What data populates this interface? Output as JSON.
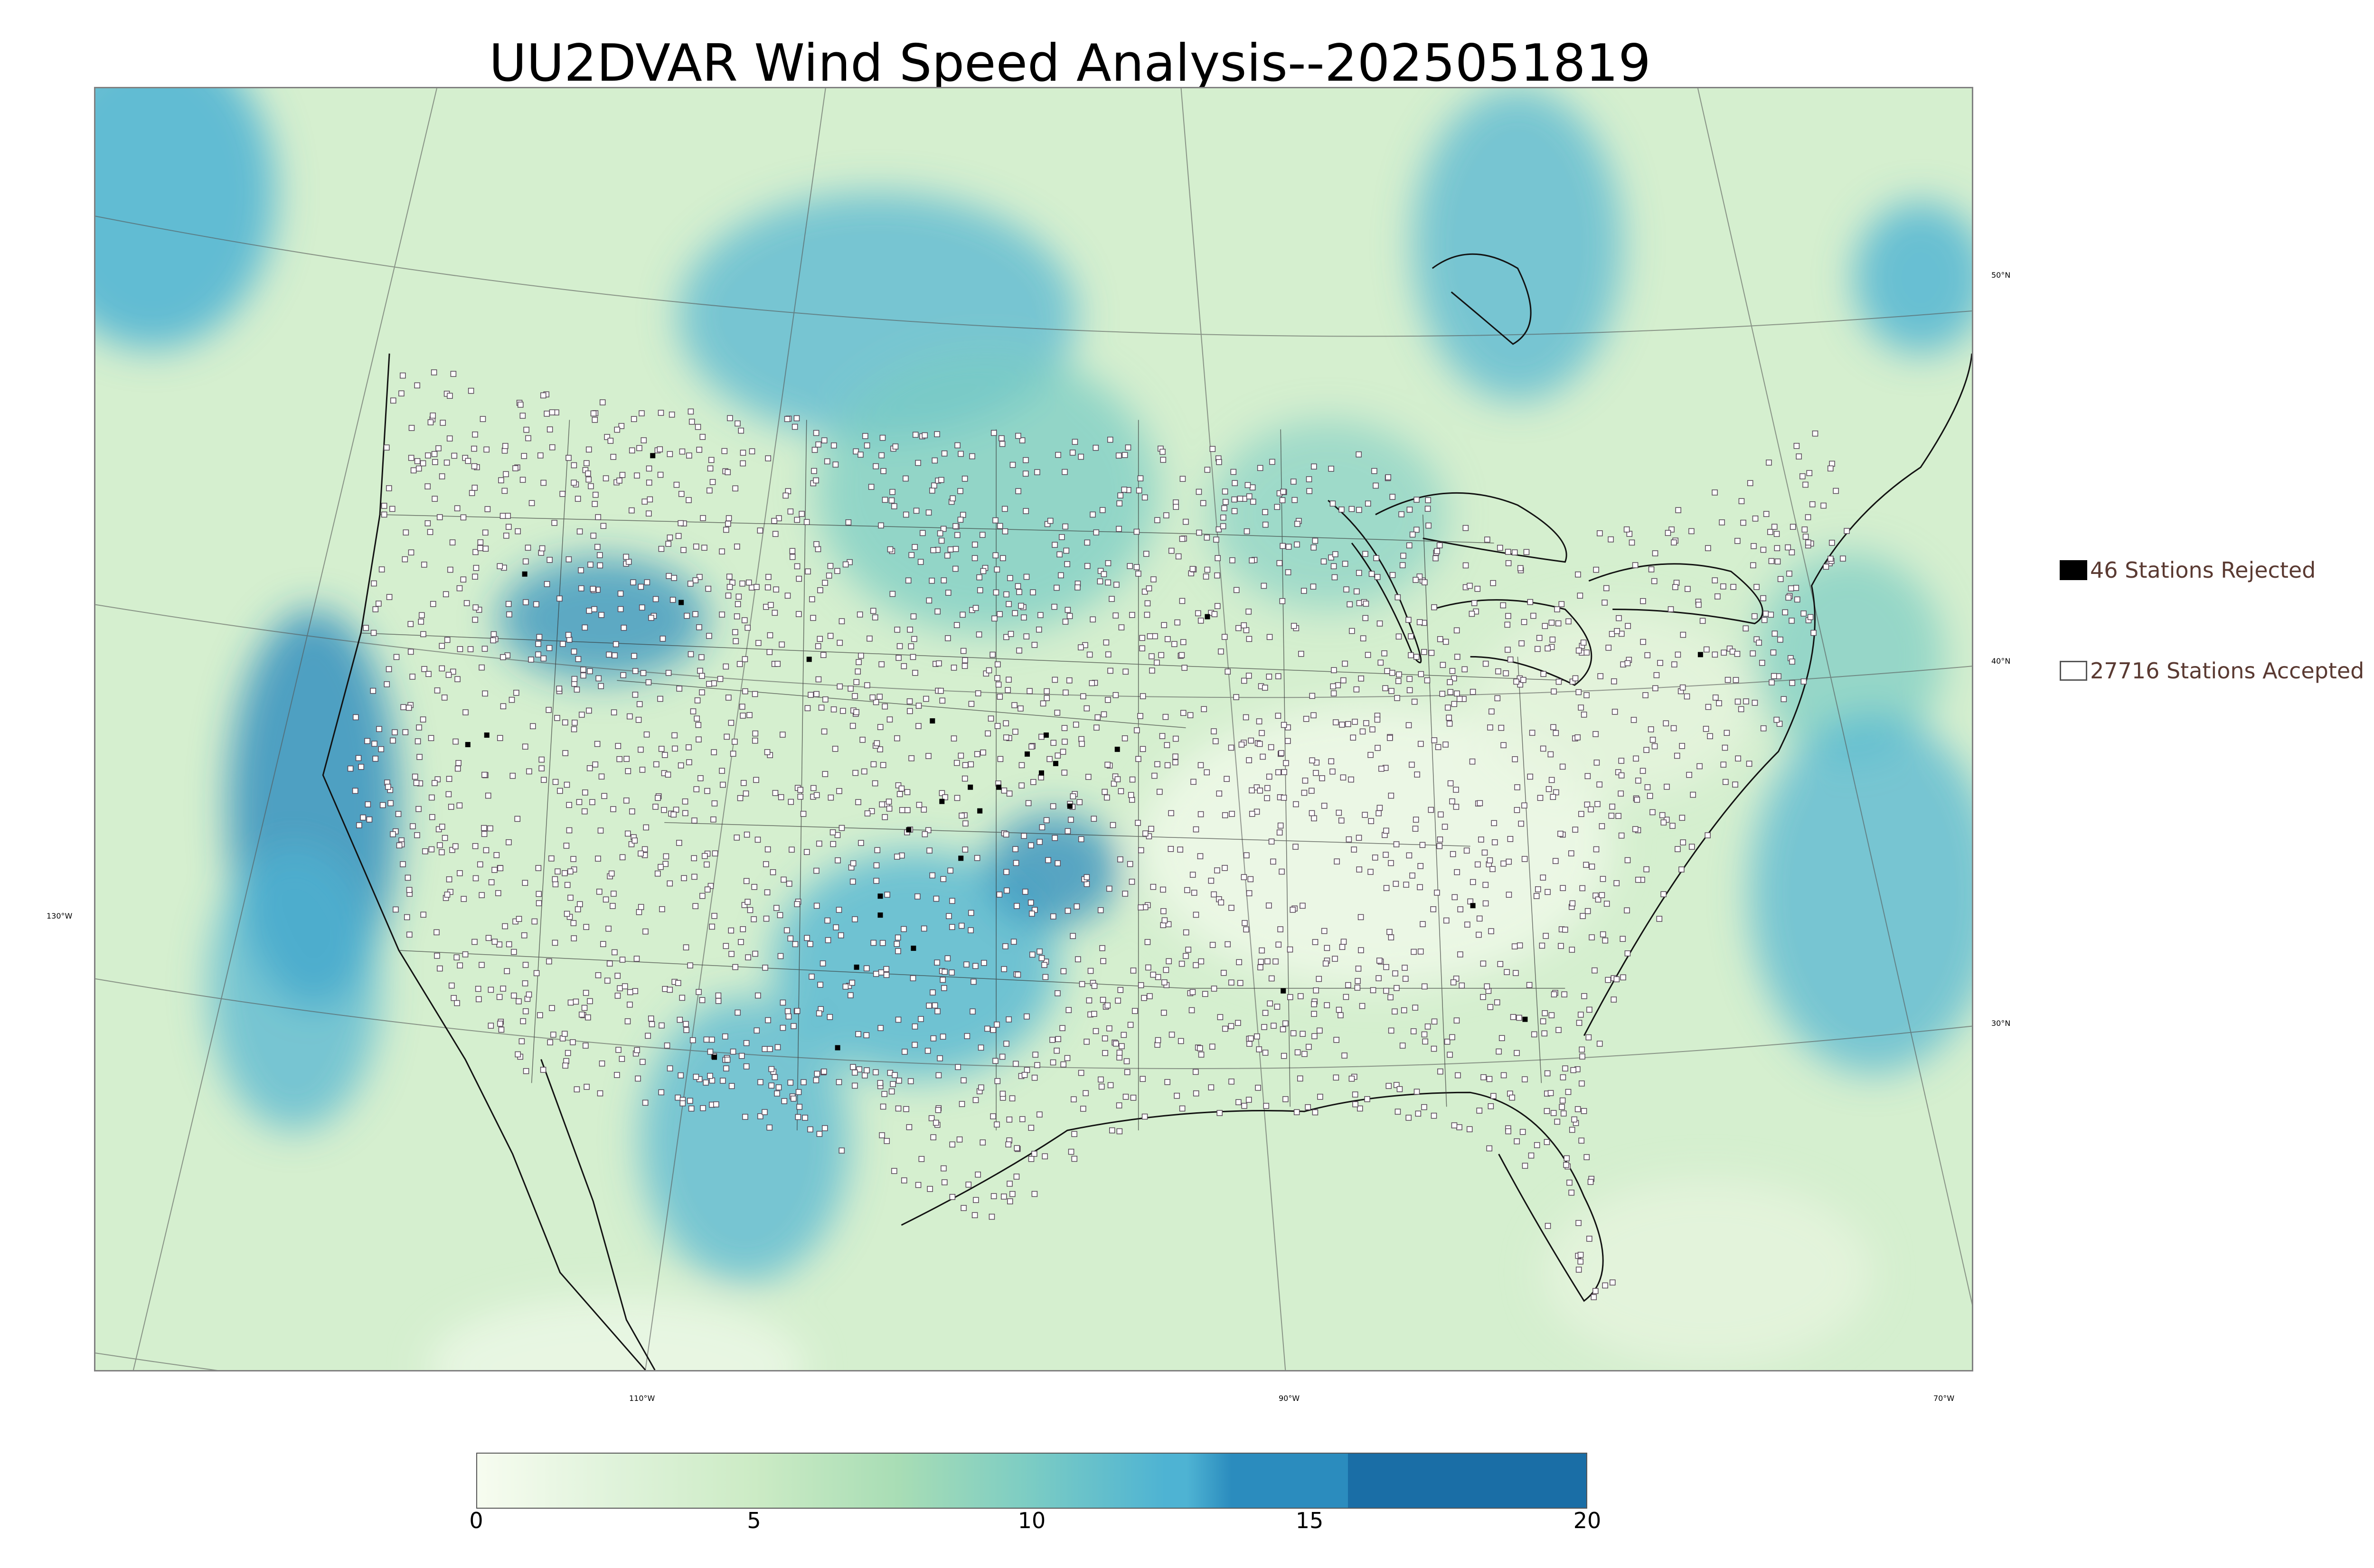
{
  "title": "UU2DVAR Wind Speed Analysis--2025051819",
  "map": {
    "lat_labels": [
      "50°N",
      "40°N",
      "30°N"
    ],
    "lon_labels": [
      "130°W",
      "110°W",
      "90°W",
      "70°W"
    ]
  },
  "legend": {
    "rejected_label": "46 Stations Rejected",
    "accepted_label": "27716 Stations Accepted",
    "rejected_color": "#000000",
    "accepted_color": "#ffffff"
  },
  "colorbar": {
    "ticks": [
      "0",
      "5",
      "10",
      "15",
      "20"
    ],
    "range": [
      0,
      20
    ],
    "colormap": "GnBu",
    "colors": [
      "#f7fcf0",
      "#e0f3db",
      "#ccebc5",
      "#a8ddb5",
      "#7bccc4",
      "#4eb3d3",
      "#2b8cbe",
      "#1a6ea6"
    ]
  }
}
